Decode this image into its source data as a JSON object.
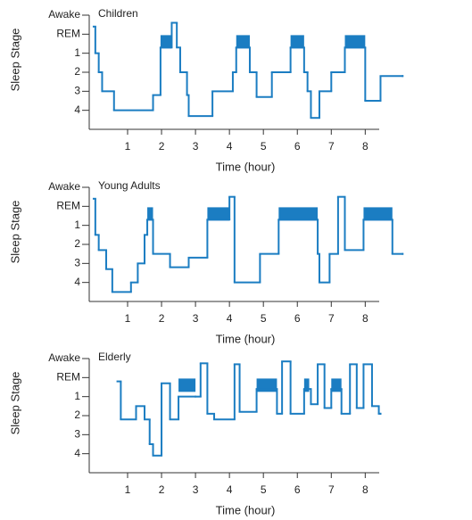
{
  "chart_data": [
    {
      "type": "step",
      "title": "Children",
      "xlabel": "Time (hour)",
      "ylabel": "Sleep Stage",
      "color": "#1b7dc2",
      "x": [
        0,
        0.05,
        0.15,
        0.25,
        0.6,
        1.75,
        1.97,
        2.3,
        2.45,
        2.55,
        2.75,
        2.8,
        3.5,
        4.1,
        4.2,
        4.6,
        4.8,
        5.25,
        5.8,
        6.2,
        6.3,
        6.4,
        6.65,
        7.0,
        7.4,
        8.0,
        8.45,
        9.1
      ],
      "values": [
        0.6,
        2,
        3,
        4,
        5,
        4.2,
        1.7,
        0.4,
        1.7,
        3,
        4.2,
        5.3,
        4,
        3,
        1.7,
        3,
        4.3,
        3,
        1.7,
        3,
        4,
        5.4,
        4,
        3,
        1.7,
        4.5,
        3.2,
        3.2
      ],
      "rem_blocks": [
        [
          1.97,
          2.3
        ],
        [
          4.2,
          4.6
        ],
        [
          5.8,
          6.2
        ],
        [
          7.4,
          8.0
        ]
      ],
      "xlim": [
        -0.13,
        9.2
      ],
      "ylim": [
        6,
        0
      ],
      "xticks": [
        1,
        2,
        3,
        4,
        5,
        6,
        7,
        8
      ],
      "yticks": [
        {
          "value": 0,
          "label": "Awake"
        },
        {
          "value": 1,
          "label": "REM"
        },
        {
          "value": 2,
          "label": "1"
        },
        {
          "value": 3,
          "label": "2"
        },
        {
          "value": 4,
          "label": "3"
        },
        {
          "value": 5,
          "label": "4"
        }
      ]
    },
    {
      "type": "step",
      "title": "Young Adults",
      "xlabel": "Time (hour)",
      "ylabel": "Sleep Stage",
      "color": "#1b7dc2",
      "x": [
        0,
        0.05,
        0.15,
        0.37,
        0.55,
        1.1,
        1.3,
        1.5,
        1.58,
        1.75,
        2.25,
        2.8,
        3.35,
        4.0,
        4.15,
        4.9,
        5.45,
        6.6,
        6.65,
        6.95,
        7.2,
        7.4,
        7.95,
        8.8,
        9.1
      ],
      "values": [
        0.6,
        2.5,
        3.3,
        4.3,
        5.5,
        5,
        4,
        2.5,
        1.7,
        3.5,
        4.2,
        3.7,
        1.7,
        0.5,
        5,
        3.5,
        1.7,
        3.5,
        5,
        3.5,
        0.5,
        3.3,
        1.7,
        3.5,
        3.5
      ],
      "rem_blocks": [
        [
          1.58,
          1.75
        ],
        [
          3.35,
          4.0
        ],
        [
          5.45,
          6.6
        ],
        [
          7.95,
          8.8
        ]
      ],
      "xlim": [
        -0.13,
        9.2
      ],
      "ylim": [
        6,
        0
      ],
      "xticks": [
        1,
        2,
        3,
        4,
        5,
        6,
        7,
        8
      ],
      "yticks": [
        {
          "value": 0,
          "label": "Awake"
        },
        {
          "value": 1,
          "label": "REM"
        },
        {
          "value": 2,
          "label": "1"
        },
        {
          "value": 3,
          "label": "2"
        },
        {
          "value": 4,
          "label": "3"
        },
        {
          "value": 5,
          "label": "4"
        }
      ]
    },
    {
      "type": "step",
      "title": "Elderly",
      "xlabel": "Time (hour)",
      "ylabel": "Sleep Stage",
      "color": "#1b7dc2",
      "x": [
        0.7,
        0.8,
        1.25,
        1.5,
        1.65,
        1.75,
        2.0,
        2.25,
        2.5,
        3.0,
        3.15,
        3.35,
        3.55,
        4.15,
        4.3,
        4.8,
        5.4,
        5.55,
        5.8,
        6.2,
        6.4,
        6.6,
        6.8,
        7.0,
        7.3,
        7.55,
        7.75,
        7.95,
        8.2,
        8.4,
        8.45
      ],
      "values": [
        1.2,
        3.2,
        2.5,
        3.2,
        4.5,
        5.1,
        1.3,
        3.2,
        2.0,
        2.0,
        0.25,
        2.9,
        3.2,
        0.3,
        2.8,
        1.6,
        2.9,
        0.15,
        2.9,
        1.6,
        2.4,
        0.3,
        2.6,
        1.6,
        2.9,
        0.3,
        2.6,
        0.3,
        2.5,
        2.9,
        2.9
      ],
      "rem_blocks": [
        [
          2.5,
          3.0
        ],
        [
          4.8,
          5.4
        ],
        [
          6.2,
          6.35
        ],
        [
          7.0,
          7.3
        ]
      ],
      "xlim": [
        -0.13,
        9.2
      ],
      "ylim": [
        6,
        0
      ],
      "xticks": [
        1,
        2,
        3,
        4,
        5,
        6,
        7,
        8
      ],
      "yticks": [
        {
          "value": 0,
          "label": "Awake"
        },
        {
          "value": 1,
          "label": "REM"
        },
        {
          "value": 2,
          "label": "1"
        },
        {
          "value": 3,
          "label": "2"
        },
        {
          "value": 4,
          "label": "3"
        },
        {
          "value": 5,
          "label": "4"
        }
      ]
    }
  ]
}
